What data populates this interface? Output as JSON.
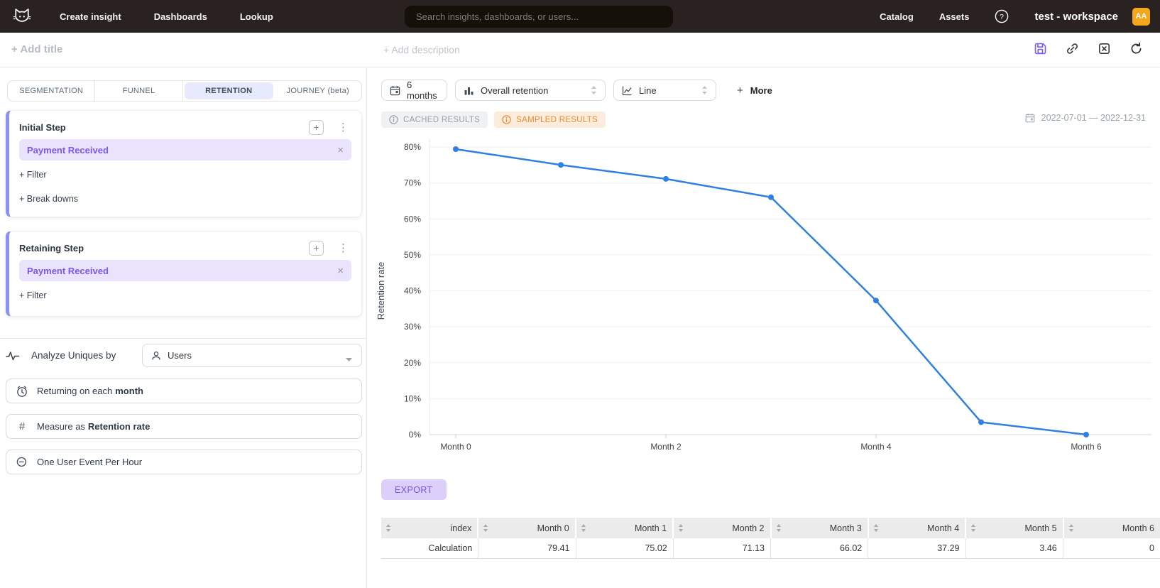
{
  "colors": {
    "accent_purple": "#7c56f7",
    "chip_purple_bg": "#e9e4fc",
    "line_blue": "#2f80e1",
    "warning_orange": "#ee8a33",
    "avatar_amber": "#f2a71c",
    "navbar_bg": "#2a2220"
  },
  "navbar": {
    "items": [
      {
        "label": "Create insight"
      },
      {
        "label": "Dashboards"
      },
      {
        "label": "Lookup"
      }
    ],
    "search_placeholder": "Search insights, dashboards, or users...",
    "right_items": [
      {
        "label": "Catalog"
      },
      {
        "label": "Assets"
      }
    ],
    "workspace_name": "test - workspace",
    "avatar_initials": "AA"
  },
  "insight_header": {
    "add_title": "+ Add title",
    "add_description": "+ Add description"
  },
  "builder": {
    "tabs": [
      {
        "label": "SEGMENTATION",
        "active": false
      },
      {
        "label": "FUNNEL",
        "active": false
      },
      {
        "label": "RETENTION",
        "active": true
      },
      {
        "label": "JOURNEY (beta)",
        "active": false
      }
    ],
    "initial_step": {
      "title": "Initial Step",
      "event": "Payment Received",
      "filter_label": "+ Filter",
      "breakdown_label": "+ Break downs"
    },
    "retaining_step": {
      "title": "Retaining Step",
      "event": "Payment Received",
      "filter_label": "+ Filter"
    },
    "analyze": {
      "label": "Analyze Uniques by",
      "value": "Users"
    },
    "returning": {
      "prefix": "Returning on each",
      "value": "month"
    },
    "measure": {
      "prefix": "Measure as",
      "value": "Retention rate"
    },
    "dedupe": {
      "label": "One User Event Per Hour"
    }
  },
  "chart_toolbar": {
    "time_window": "6 months",
    "retention_type": "Overall retention",
    "chart_type": "Line",
    "more_plus": "+",
    "more_label": "More"
  },
  "status_row": {
    "cached_label": "CACHED RESULTS",
    "sampled_label": "SAMPLED RESULTS",
    "date_range": "2022-07-01 — 2022-12-31"
  },
  "chart_data": {
    "type": "line",
    "title": "",
    "categories": [
      "Month 0",
      "Month 1",
      "Month 2",
      "Month 3",
      "Month 4",
      "Month 5",
      "Month 6"
    ],
    "values": [
      79.41,
      75.02,
      71.13,
      66.02,
      37.29,
      3.46,
      0
    ],
    "xlabel": "",
    "ylabel": "Retention rate",
    "ylim": [
      0,
      84
    ],
    "ymax_tick": 80,
    "ytick_step": 10,
    "ytick_suffix": "%",
    "x_labeled_ticks": [
      0,
      2,
      4,
      6
    ],
    "line_color": "#2f80e1",
    "marker": "circle",
    "grid": true,
    "legend_position": "none"
  },
  "results": {
    "export_label": "EXPORT",
    "table": {
      "columns": [
        "index",
        "Month 0",
        "Month 1",
        "Month 2",
        "Month 3",
        "Month 4",
        "Month 5",
        "Month 6"
      ],
      "rows": [
        {
          "index": "Calculation",
          "values": [
            "79.41",
            "75.02",
            "71.13",
            "66.02",
            "37.29",
            "3.46",
            "0"
          ]
        }
      ]
    }
  }
}
